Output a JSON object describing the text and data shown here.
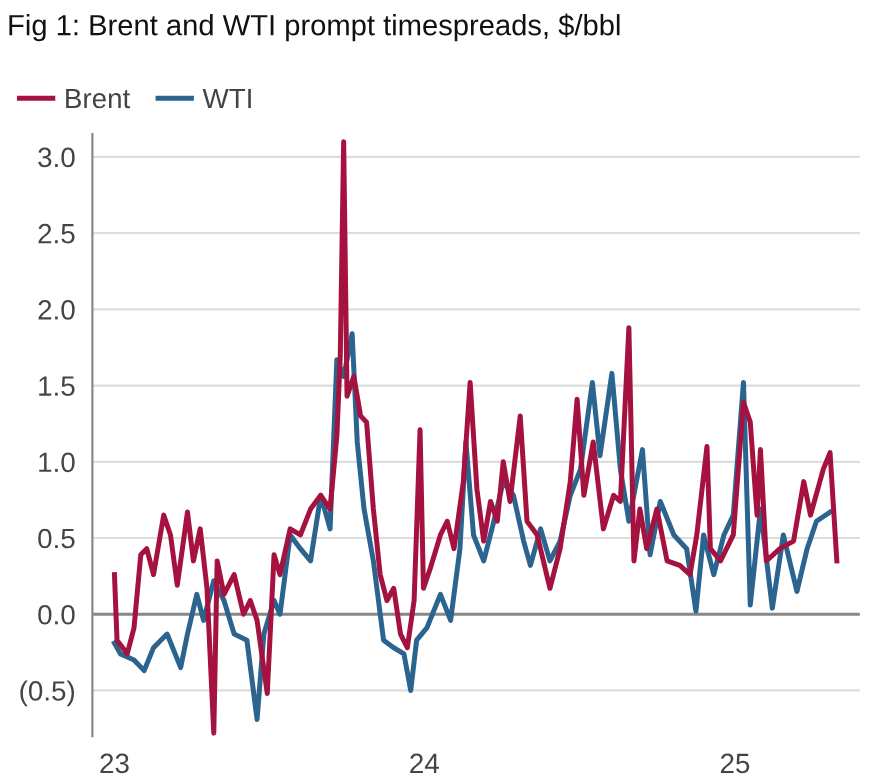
{
  "chart_data": {
    "type": "line",
    "title": "Fig 1: Brent and WTI prompt timespreads, $/bbl",
    "series": [
      {
        "name": "Brent",
        "color": "#a5123f",
        "x": [
          "2023-01-01",
          "2023-01-04",
          "2023-01-16",
          "2023-01-24",
          "2023-02-01",
          "2023-02-08",
          "2023-02-16",
          "2023-02-28",
          "2023-03-08",
          "2023-03-16",
          "2023-03-28",
          "2023-04-04",
          "2023-04-12",
          "2023-04-20",
          "2023-04-28",
          "2023-05-02",
          "2023-05-10",
          "2023-05-22",
          "2023-06-02",
          "2023-06-10",
          "2023-06-18",
          "2023-06-30",
          "2023-07-08",
          "2023-07-15",
          "2023-07-27",
          "2023-08-08",
          "2023-08-20",
          "2023-09-01",
          "2023-09-12",
          "2023-09-20",
          "2023-09-24",
          "2023-09-28",
          "2023-10-02",
          "2023-10-10",
          "2023-10-18",
          "2023-10-25",
          "2023-11-02",
          "2023-11-10",
          "2023-11-18",
          "2023-11-26",
          "2023-12-04",
          "2023-12-12",
          "2023-12-20",
          "2023-12-27",
          "2023-12-31",
          "2024-01-08",
          "2024-01-20",
          "2024-01-28",
          "2024-02-05",
          "2024-02-16",
          "2024-02-24",
          "2024-03-03",
          "2024-03-11",
          "2024-03-19",
          "2024-03-27",
          "2024-04-03",
          "2024-04-11",
          "2024-04-23",
          "2024-05-01",
          "2024-05-13",
          "2024-05-28",
          "2024-06-09",
          "2024-06-21",
          "2024-06-29",
          "2024-07-07",
          "2024-07-18",
          "2024-07-30",
          "2024-08-11",
          "2024-08-19",
          "2024-08-29",
          "2024-09-04",
          "2024-09-11",
          "2024-09-19",
          "2024-10-01",
          "2024-10-13",
          "2024-10-28",
          "2024-11-09",
          "2024-11-17",
          "2024-11-29",
          "2024-12-03",
          "2024-12-15",
          "2024-12-30",
          "2025-01-11",
          "2025-01-19",
          "2025-01-27",
          "2025-01-31",
          "2025-02-07",
          "2025-02-23",
          "2025-03-11",
          "2025-03-23",
          "2025-03-31",
          "2025-04-15",
          "2025-04-23",
          "2025-05-01"
        ],
        "values": [
          0.26,
          -0.17,
          -0.26,
          -0.09,
          0.39,
          0.43,
          0.26,
          0.65,
          0.52,
          0.19,
          0.67,
          0.35,
          0.56,
          0.17,
          -0.78,
          0.35,
          0.13,
          0.26,
          0.0,
          0.09,
          -0.04,
          -0.52,
          0.39,
          0.26,
          0.56,
          0.52,
          0.69,
          0.78,
          0.69,
          1.17,
          1.69,
          3.1,
          1.43,
          1.56,
          1.3,
          1.26,
          0.69,
          0.26,
          0.09,
          0.17,
          -0.13,
          -0.22,
          0.09,
          1.21,
          0.17,
          0.3,
          0.52,
          0.61,
          0.43,
          0.87,
          1.52,
          0.82,
          0.48,
          0.74,
          0.61,
          1.0,
          0.74,
          1.3,
          0.61,
          0.52,
          0.17,
          0.43,
          0.87,
          1.41,
          0.78,
          1.13,
          0.56,
          0.78,
          0.74,
          1.88,
          0.35,
          0.69,
          0.43,
          0.69,
          0.35,
          0.32,
          0.26,
          0.52,
          1.1,
          0.43,
          0.35,
          0.52,
          1.39,
          1.26,
          0.65,
          1.08,
          0.35,
          0.43,
          0.48,
          0.87,
          0.65,
          0.95,
          1.06,
          0.35
        ]
      },
      {
        "name": "WTI",
        "color": "#2c6490",
        "x": [
          "2023-01-01",
          "2023-01-08",
          "2023-01-24",
          "2023-02-05",
          "2023-02-16",
          "2023-03-04",
          "2023-03-20",
          "2023-03-28",
          "2023-04-08",
          "2023-04-16",
          "2023-04-28",
          "2023-05-10",
          "2023-05-22",
          "2023-06-06",
          "2023-06-18",
          "2023-06-26",
          "2023-07-08",
          "2023-07-15",
          "2023-07-27",
          "2023-08-08",
          "2023-08-20",
          "2023-09-01",
          "2023-09-12",
          "2023-09-20",
          "2023-09-28",
          "2023-10-08",
          "2023-10-14",
          "2023-10-22",
          "2023-11-02",
          "2023-11-14",
          "2023-11-26",
          "2023-12-08",
          "2023-12-16",
          "2023-12-23",
          "2024-01-04",
          "2024-01-20",
          "2024-02-01",
          "2024-02-12",
          "2024-02-19",
          "2024-02-28",
          "2024-03-11",
          "2024-03-23",
          "2024-04-03",
          "2024-04-15",
          "2024-04-27",
          "2024-05-05",
          "2024-05-17",
          "2024-05-28",
          "2024-06-09",
          "2024-06-21",
          "2024-07-03",
          "2024-07-17",
          "2024-07-26",
          "2024-08-09",
          "2024-08-19",
          "2024-08-29",
          "2024-09-14",
          "2024-09-23",
          "2024-10-05",
          "2024-10-21",
          "2024-11-05",
          "2024-11-16",
          "2024-11-25",
          "2024-12-07",
          "2024-12-19",
          "2024-12-30",
          "2025-01-11",
          "2025-01-19",
          "2025-01-31",
          "2025-02-14",
          "2025-02-27",
          "2025-03-15",
          "2025-03-27",
          "2025-04-07",
          "2025-04-23"
        ],
        "values": [
          -0.19,
          -0.26,
          -0.3,
          -0.37,
          -0.22,
          -0.13,
          -0.35,
          -0.13,
          0.13,
          -0.04,
          0.22,
          0.09,
          -0.13,
          -0.17,
          -0.69,
          -0.13,
          0.09,
          0.0,
          0.52,
          0.43,
          0.35,
          0.78,
          0.56,
          1.67,
          1.56,
          1.84,
          1.13,
          0.69,
          0.35,
          -0.17,
          -0.22,
          -0.26,
          -0.5,
          -0.17,
          -0.09,
          0.13,
          -0.04,
          0.43,
          1.13,
          0.52,
          0.35,
          0.61,
          0.87,
          0.78,
          0.48,
          0.32,
          0.56,
          0.35,
          0.48,
          0.78,
          0.95,
          1.52,
          1.04,
          1.58,
          0.95,
          0.61,
          1.08,
          0.39,
          0.74,
          0.52,
          0.43,
          0.02,
          0.52,
          0.26,
          0.52,
          0.65,
          1.52,
          0.06,
          0.69,
          0.04,
          0.52,
          0.15,
          0.43,
          0.61,
          0.67
        ]
      }
    ],
    "xlim": [
      "2022-12-06",
      "2025-05-28"
    ],
    "xticks": [
      {
        "value": "2023-01-01",
        "label": "23"
      },
      {
        "value": "2024-01-01",
        "label": "24"
      },
      {
        "value": "2025-01-01",
        "label": "25"
      }
    ],
    "ylim": [
      -0.8,
      3.15
    ],
    "yticks": [
      {
        "value": -0.5,
        "label": "(0.5)"
      },
      {
        "value": 0,
        "label": "0.0"
      },
      0.5,
      {
        "value": 1,
        "label": "1.0"
      },
      1.5,
      {
        "value": 2,
        "label": "2.0"
      },
      2.5,
      {
        "value": 3,
        "label": "3.0"
      }
    ],
    "ref_lines": [
      {
        "axis": "y",
        "value": 0,
        "label": null,
        "color": "#888888"
      }
    ],
    "grid": "y",
    "legend": "top left",
    "marker": "none",
    "line_style": "solid"
  }
}
